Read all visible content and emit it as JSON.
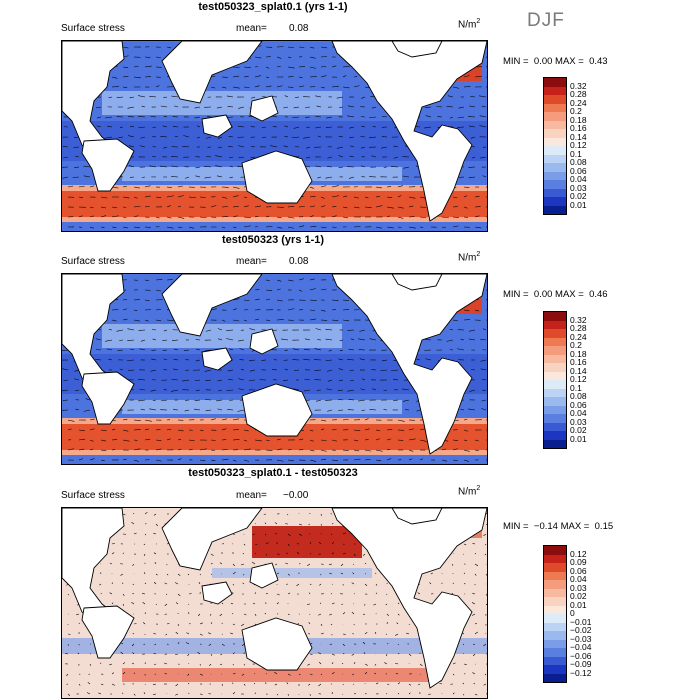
{
  "season": "DJF",
  "units_prefix": "N/m",
  "units_exp": "2",
  "panels": [
    {
      "title": "test050323_splat0.1 (yrs 1-1)",
      "label": "Surface stress",
      "mean_label": "mean=",
      "mean_value": "0.08",
      "min_label": "MIN =",
      "min_value": "0.00",
      "max_label": "MAX =",
      "max_value": "0.43",
      "colorbar_labels": [
        "0.32",
        "0.28",
        "0.24",
        "0.2",
        "0.18",
        "0.16",
        "0.14",
        "0.12",
        "0.1",
        "0.08",
        "0.06",
        "0.04",
        "0.03",
        "0.02",
        "0.01"
      ],
      "colorbar_colors": [
        "#8b0d0d",
        "#c5231a",
        "#df4a2b",
        "#ee7a52",
        "#f59c7c",
        "#f7b9a0",
        "#f8d3c0",
        "#fae8dc",
        "#ddeaf8",
        "#bcd3f4",
        "#9ab9ee",
        "#7b9de7",
        "#5b7fe0",
        "#3a5ad4",
        "#1c36c2",
        "#0a1f8f"
      ]
    },
    {
      "title": "test050323 (yrs 1-1)",
      "label": "Surface stress",
      "mean_label": "mean=",
      "mean_value": "0.08",
      "min_label": "MIN =",
      "min_value": "0.00",
      "max_label": "MAX =",
      "max_value": "0.46",
      "colorbar_labels": [
        "0.32",
        "0.28",
        "0.24",
        "0.2",
        "0.18",
        "0.16",
        "0.14",
        "0.12",
        "0.1",
        "0.08",
        "0.06",
        "0.04",
        "0.03",
        "0.02",
        "0.01"
      ],
      "colorbar_colors": [
        "#8b0d0d",
        "#c5231a",
        "#df4a2b",
        "#ee7a52",
        "#f59c7c",
        "#f7b9a0",
        "#f8d3c0",
        "#fae8dc",
        "#ddeaf8",
        "#bcd3f4",
        "#9ab9ee",
        "#7b9de7",
        "#5b7fe0",
        "#3a5ad4",
        "#1c36c2",
        "#0a1f8f"
      ]
    },
    {
      "title": "test050323_splat0.1 - test050323",
      "label": "Surface stress",
      "mean_label": "mean=",
      "mean_value": "−0.00",
      "min_label": "MIN =",
      "min_value": "−0.14",
      "max_label": "MAX =",
      "max_value": "0.15",
      "colorbar_labels": [
        "0.12",
        "0.09",
        "0.06",
        "0.04",
        "0.03",
        "0.02",
        "0.01",
        "0",
        "−0.01",
        "−0.02",
        "−0.03",
        "−0.04",
        "−0.06",
        "−0.09",
        "−0.12"
      ],
      "colorbar_colors": [
        "#8b0d0d",
        "#c5231a",
        "#df4a2b",
        "#ee7a52",
        "#f59c7c",
        "#f7b9a0",
        "#f8d3c0",
        "#fae8dc",
        "#ddeaf8",
        "#bcd3f4",
        "#9ab9ee",
        "#7b9de7",
        "#5b7fe0",
        "#3a5ad4",
        "#1c36c2",
        "#0a1f8f"
      ]
    }
  ]
}
